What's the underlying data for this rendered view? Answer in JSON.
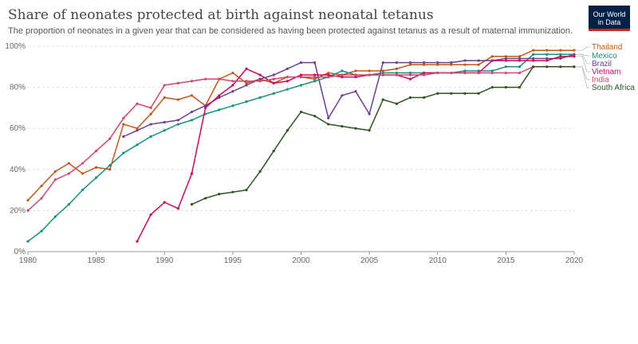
{
  "title": "Share of neonates protected at birth against neonatal tetanus",
  "subtitle": "The proportion of neonates in a given year that can be considered as having been protected against tetanus as a result of maternal immunization.",
  "logo": {
    "line1": "Our World",
    "line2": "in Data"
  },
  "chart_data": {
    "type": "line",
    "title": "Share of neonates protected at birth against neonatal tetanus",
    "xlim": [
      1980,
      2020
    ],
    "ylim": [
      0,
      100
    ],
    "x_ticks": [
      1980,
      1985,
      1990,
      1995,
      2000,
      2005,
      2010,
      2015,
      2020
    ],
    "x_tick_labels": [
      "1980",
      "1985",
      "1990",
      "1995",
      "2000",
      "2005",
      "2010",
      "2015",
      "2020"
    ],
    "y_ticks": [
      0,
      20,
      40,
      60,
      80,
      100
    ],
    "y_tick_labels": [
      "0%",
      "20%",
      "40%",
      "60%",
      "80%",
      "100%"
    ],
    "grid": "horizontal dashed",
    "legend_position": "right",
    "series": [
      {
        "name": "Thailand",
        "color": "#c05917",
        "x": [
          1980,
          1981,
          1982,
          1983,
          1984,
          1985,
          1986,
          1987,
          1988,
          1989,
          1990,
          1991,
          1992,
          1993,
          1994,
          1995,
          1996,
          1997,
          1998,
          1999,
          2000,
          2001,
          2002,
          2003,
          2004,
          2005,
          2006,
          2007,
          2008,
          2009,
          2010,
          2011,
          2012,
          2013,
          2014,
          2015,
          2016,
          2017,
          2018,
          2019,
          2020
        ],
        "y": [
          25,
          32,
          39,
          43,
          38,
          41,
          40,
          62,
          60,
          67,
          75,
          74,
          76,
          71,
          84,
          87,
          82,
          84,
          82,
          85,
          85,
          84,
          87,
          86,
          88,
          88,
          88,
          89,
          91,
          91,
          91,
          91,
          91,
          91,
          95,
          95,
          95,
          98,
          98,
          98,
          98
        ]
      },
      {
        "name": "Mexico",
        "color": "#18907f",
        "x": [
          1980,
          1981,
          1982,
          1983,
          1984,
          1985,
          1986,
          1987,
          1988,
          1989,
          1990,
          1991,
          1992,
          1993,
          1994,
          1995,
          1996,
          1997,
          1998,
          1999,
          2000,
          2001,
          2002,
          2003,
          2004,
          2005,
          2006,
          2007,
          2008,
          2009,
          2010,
          2011,
          2012,
          2013,
          2014,
          2015,
          2016,
          2017,
          2018,
          2019,
          2020
        ],
        "y": [
          5,
          10,
          17,
          23,
          30,
          36,
          42,
          48,
          52,
          56,
          59,
          62,
          64,
          67,
          69,
          71,
          73,
          75,
          77,
          79,
          81,
          83,
          85,
          88,
          86,
          86,
          87,
          87,
          87,
          87,
          87,
          87,
          88,
          88,
          88,
          90,
          90,
          96,
          96,
          96,
          96
        ]
      },
      {
        "name": "Brazil",
        "color": "#6d3e91",
        "x": [
          1987,
          1988,
          1989,
          1990,
          1991,
          1992,
          1993,
          1994,
          1995,
          1996,
          1997,
          1998,
          1999,
          2000,
          2001,
          2002,
          2003,
          2004,
          2005,
          2006,
          2007,
          2008,
          2009,
          2010,
          2011,
          2012,
          2013,
          2014,
          2015,
          2016,
          2017,
          2018,
          2019,
          2020
        ],
        "y": [
          56,
          59,
          62,
          63,
          64,
          68,
          71,
          75,
          78,
          81,
          84,
          86,
          89,
          92,
          92,
          65,
          76,
          78,
          67,
          92,
          92,
          92,
          92,
          92,
          92,
          93,
          93,
          93,
          94,
          94,
          94,
          94,
          94,
          96
        ]
      },
      {
        "name": "Vietnam",
        "color": "#c8095e",
        "x": [
          1988,
          1989,
          1990,
          1991,
          1992,
          1993,
          1994,
          1995,
          1996,
          1997,
          1998,
          1999,
          2000,
          2001,
          2002,
          2003,
          2004,
          2005,
          2006,
          2007,
          2008,
          2009,
          2010,
          2011,
          2012,
          2013,
          2014,
          2015,
          2016,
          2017,
          2018,
          2019,
          2020
        ],
        "y": [
          5,
          18,
          24,
          21,
          38,
          70,
          76,
          81,
          89,
          86,
          82,
          83,
          86,
          86,
          86,
          85,
          85,
          86,
          86,
          86,
          84,
          87,
          87,
          87,
          87,
          87,
          93,
          93,
          93,
          93,
          93,
          95,
          95
        ]
      },
      {
        "name": "India",
        "color": "#d0486b",
        "x": [
          1980,
          1981,
          1982,
          1983,
          1984,
          1985,
          1986,
          1987,
          1988,
          1989,
          1990,
          1991,
          1992,
          1993,
          1994,
          1995,
          1996,
          1997,
          1998,
          1999,
          2000,
          2001,
          2002,
          2003,
          2004,
          2005,
          2006,
          2007,
          2008,
          2009,
          2010,
          2011,
          2012,
          2013,
          2014,
          2015,
          2016,
          2017,
          2018,
          2019,
          2020
        ],
        "y": [
          20,
          26,
          35,
          38,
          43,
          49,
          55,
          65,
          72,
          70,
          81,
          82,
          83,
          84,
          84,
          83,
          83,
          83,
          84,
          85,
          85,
          85,
          85,
          86,
          86,
          86,
          86,
          86,
          86,
          86,
          87,
          87,
          87,
          87,
          87,
          87,
          87,
          90,
          90,
          90,
          90
        ]
      },
      {
        "name": "South Africa",
        "color": "#2c5421",
        "x": [
          1992,
          1993,
          1994,
          1995,
          1996,
          1997,
          1998,
          1999,
          2000,
          2001,
          2002,
          2003,
          2004,
          2005,
          2006,
          2007,
          2008,
          2009,
          2010,
          2011,
          2012,
          2013,
          2014,
          2015,
          2016,
          2017,
          2018,
          2019,
          2020
        ],
        "y": [
          23,
          26,
          28,
          29,
          30,
          39,
          49,
          59,
          68,
          66,
          62,
          61,
          60,
          59,
          74,
          72,
          75,
          75,
          77,
          77,
          77,
          77,
          80,
          80,
          80,
          90,
          90,
          90,
          90
        ]
      }
    ]
  }
}
